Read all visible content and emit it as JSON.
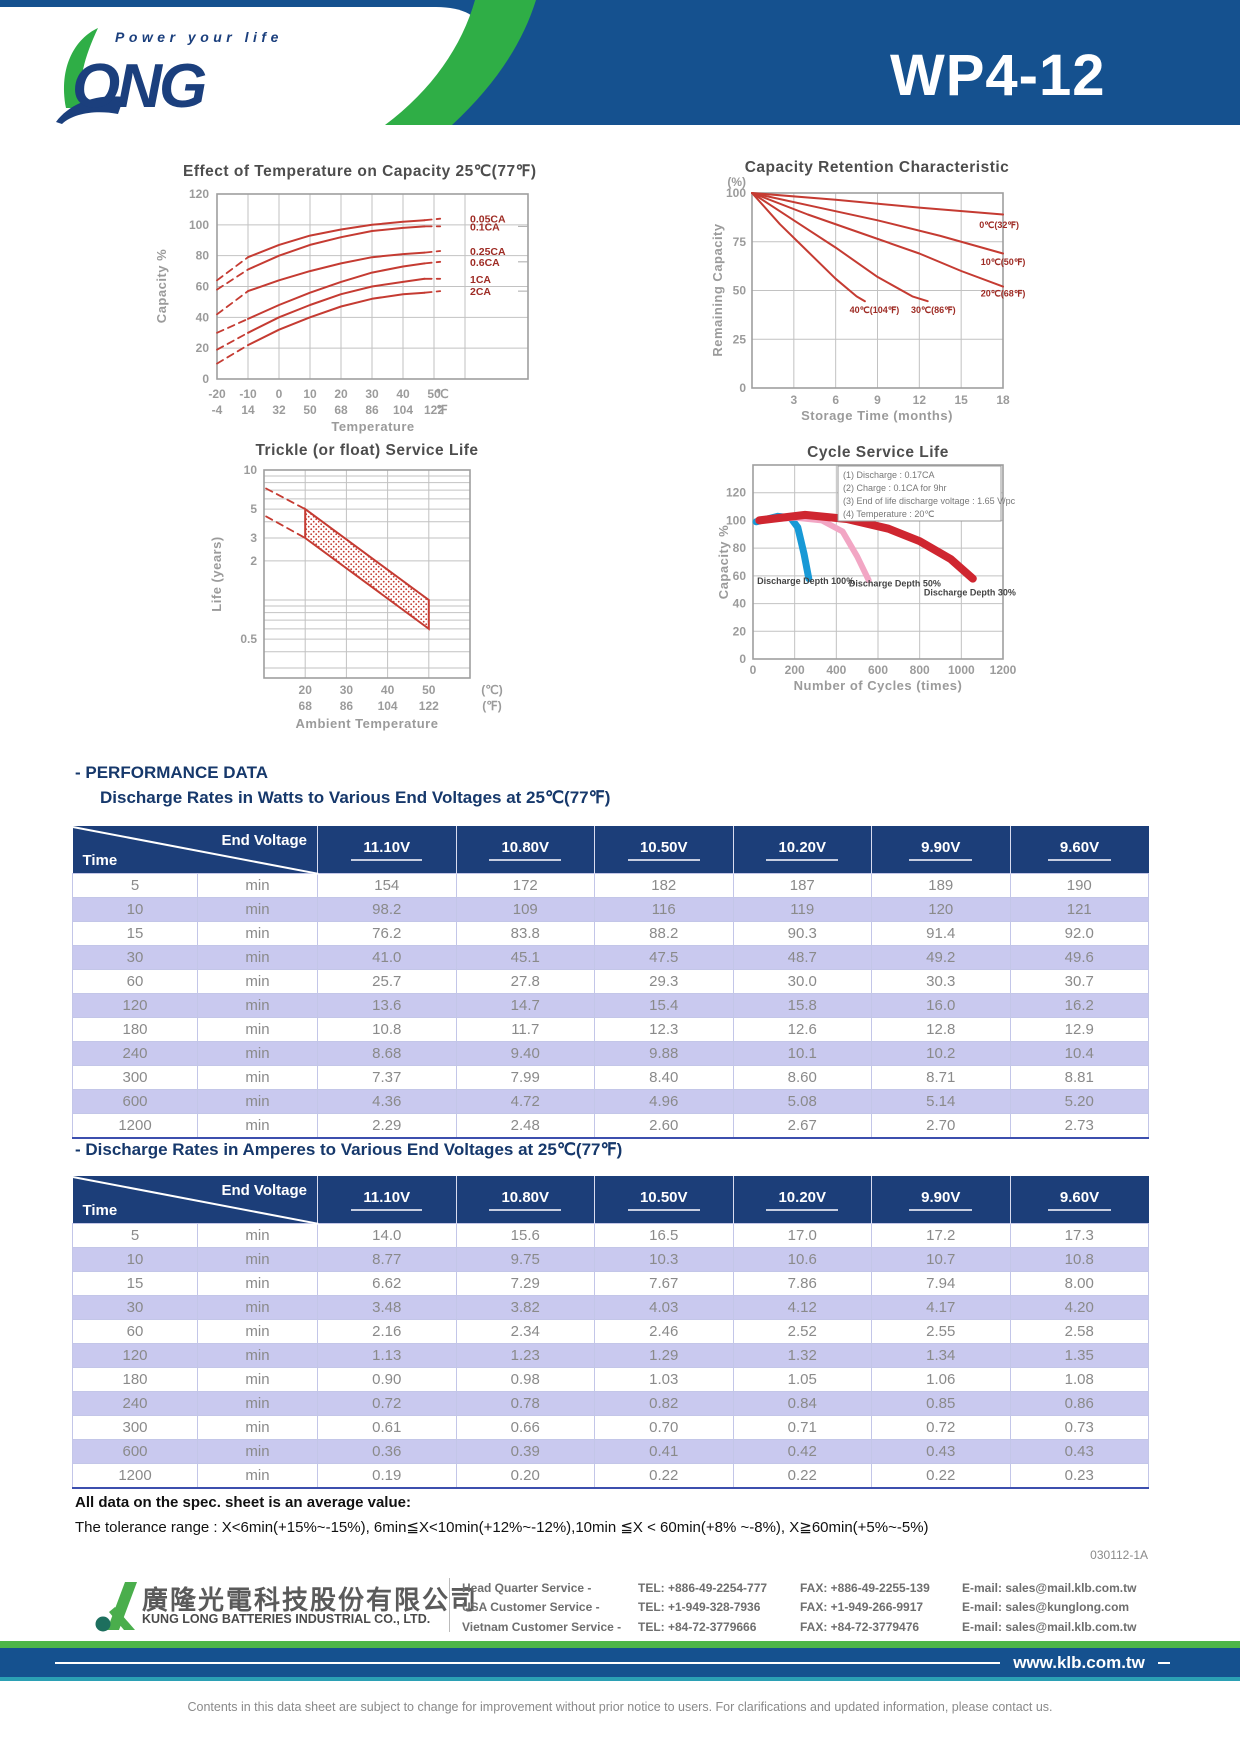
{
  "header": {
    "tagline": "Power your life",
    "brand": "LONG",
    "model": "WP4-12"
  },
  "performance": {
    "section_title": "- PERFORMANCE DATA",
    "watts_title": "Discharge Rates in Watts to Various End Voltages at 25℃(77℉)",
    "amps_title": "- Discharge Rates in Amperes to Various End Voltages at 25℃(77℉)",
    "corner_top": "End Voltage",
    "corner_left": "Time",
    "columns": [
      "11.10V",
      "10.80V",
      "10.50V",
      "10.20V",
      "9.90V",
      "9.60V"
    ],
    "watts_rows": [
      [
        "5",
        "min",
        "154",
        "172",
        "182",
        "187",
        "189",
        "190"
      ],
      [
        "10",
        "min",
        "98.2",
        "109",
        "116",
        "119",
        "120",
        "121"
      ],
      [
        "15",
        "min",
        "76.2",
        "83.8",
        "88.2",
        "90.3",
        "91.4",
        "92.0"
      ],
      [
        "30",
        "min",
        "41.0",
        "45.1",
        "47.5",
        "48.7",
        "49.2",
        "49.6"
      ],
      [
        "60",
        "min",
        "25.7",
        "27.8",
        "29.3",
        "30.0",
        "30.3",
        "30.7"
      ],
      [
        "120",
        "min",
        "13.6",
        "14.7",
        "15.4",
        "15.8",
        "16.0",
        "16.2"
      ],
      [
        "180",
        "min",
        "10.8",
        "11.7",
        "12.3",
        "12.6",
        "12.8",
        "12.9"
      ],
      [
        "240",
        "min",
        "8.68",
        "9.40",
        "9.88",
        "10.1",
        "10.2",
        "10.4"
      ],
      [
        "300",
        "min",
        "7.37",
        "7.99",
        "8.40",
        "8.60",
        "8.71",
        "8.81"
      ],
      [
        "600",
        "min",
        "4.36",
        "4.72",
        "4.96",
        "5.08",
        "5.14",
        "5.20"
      ],
      [
        "1200",
        "min",
        "2.29",
        "2.48",
        "2.60",
        "2.67",
        "2.70",
        "2.73"
      ]
    ],
    "amps_rows": [
      [
        "5",
        "min",
        "14.0",
        "15.6",
        "16.5",
        "17.0",
        "17.2",
        "17.3"
      ],
      [
        "10",
        "min",
        "8.77",
        "9.75",
        "10.3",
        "10.6",
        "10.7",
        "10.8"
      ],
      [
        "15",
        "min",
        "6.62",
        "7.29",
        "7.67",
        "7.86",
        "7.94",
        "8.00"
      ],
      [
        "30",
        "min",
        "3.48",
        "3.82",
        "4.03",
        "4.12",
        "4.17",
        "4.20"
      ],
      [
        "60",
        "min",
        "2.16",
        "2.34",
        "2.46",
        "2.52",
        "2.55",
        "2.58"
      ],
      [
        "120",
        "min",
        "1.13",
        "1.23",
        "1.29",
        "1.32",
        "1.34",
        "1.35"
      ],
      [
        "180",
        "min",
        "0.90",
        "0.98",
        "1.03",
        "1.05",
        "1.06",
        "1.08"
      ],
      [
        "240",
        "min",
        "0.72",
        "0.78",
        "0.82",
        "0.84",
        "0.85",
        "0.86"
      ],
      [
        "300",
        "min",
        "0.61",
        "0.66",
        "0.70",
        "0.71",
        "0.72",
        "0.73"
      ],
      [
        "600",
        "min",
        "0.36",
        "0.39",
        "0.41",
        "0.42",
        "0.43",
        "0.43"
      ],
      [
        "1200",
        "min",
        "0.19",
        "0.20",
        "0.22",
        "0.22",
        "0.22",
        "0.23"
      ]
    ]
  },
  "notes": {
    "average": "All data on the spec. sheet is an average value:",
    "tolerance": "The tolerance range : X<6min(+15%~-15%), 6min≦X<10min(+12%~-12%),10min ≦X < 60min(+8% ~-8%), X≧60min(+5%~-5%)",
    "doc_code": "030112-1A"
  },
  "footer": {
    "company_cn": "廣隆光電科技股份有限公司",
    "company_en": "KUNG LONG BATTERIES INDUSTRIAL CO., LTD.",
    "contacts": [
      {
        "label": "Head Quarter Service -",
        "tel": "TEL: +886-49-2254-777",
        "fax": "FAX: +886-49-2255-139",
        "email": "E-mail: sales@mail.klb.com.tw"
      },
      {
        "label": "USA Customer Service -",
        "tel": "TEL: +1-949-328-7936",
        "fax": "FAX: +1-949-266-9917",
        "email": "E-mail: sales@kunglong.com"
      },
      {
        "label": "Vietnam Customer Service -",
        "tel": "TEL: +84-72-3779666",
        "fax": "FAX: +84-72-3779476",
        "email": "E-mail: sales@mail.klb.com.tw"
      }
    ],
    "website": "www.klb.com.tw",
    "disclaimer": "Contents in this data sheet are subject to change for improvement without prior notice to users. For clarifications and updated information, please contact us."
  },
  "colors": {
    "navy": "#15518f",
    "table_header": "#1c3e79",
    "green": "#4db648",
    "chart_red": "#c53b32",
    "row_lavender": "#c9c9ef",
    "teal": "#2ba0b4"
  },
  "chart_data": [
    {
      "id": "temp-capacity",
      "type": "line",
      "title": "Effect of Temperature on Capacity  25℃(77℉)",
      "ylabel": "Capacity %",
      "xlabel": "Temperature",
      "ylim": [
        0,
        120
      ],
      "yticks": [
        0,
        20,
        40,
        60,
        80,
        100,
        120
      ],
      "xticks_c": [
        -20,
        -10,
        0,
        10,
        20,
        30,
        40,
        50
      ],
      "xticks_f": [
        -4,
        14,
        32,
        50,
        68,
        86,
        104,
        122
      ],
      "x_unit_c": "℃",
      "x_unit_f": "℉",
      "grid": true,
      "series": [
        {
          "name": "0.05CA",
          "points": [
            [
              -20,
              64
            ],
            [
              -10,
              79
            ],
            [
              0,
              87
            ],
            [
              10,
              93
            ],
            [
              20,
              97
            ],
            [
              30,
              100
            ],
            [
              40,
              102
            ],
            [
              47,
              103
            ],
            [
              52,
              104
            ]
          ]
        },
        {
          "name": "0.1CA",
          "points": [
            [
              -20,
              58
            ],
            [
              -10,
              71
            ],
            [
              0,
              80
            ],
            [
              10,
              87
            ],
            [
              20,
              92
            ],
            [
              30,
              96
            ],
            [
              40,
              98
            ],
            [
              47,
              99
            ],
            [
              52,
              99
            ]
          ]
        },
        {
          "name": "0.25CA",
          "points": [
            [
              -20,
              42
            ],
            [
              -10,
              57
            ],
            [
              0,
              64
            ],
            [
              10,
              70
            ],
            [
              20,
              75
            ],
            [
              30,
              79
            ],
            [
              40,
              81
            ],
            [
              47,
              82
            ],
            [
              52,
              83
            ]
          ]
        },
        {
          "name": "0.6CA",
          "points": [
            [
              -20,
              30
            ],
            [
              -10,
              39
            ],
            [
              0,
              48
            ],
            [
              10,
              56
            ],
            [
              20,
              63
            ],
            [
              30,
              69
            ],
            [
              40,
              73
            ],
            [
              47,
              75
            ],
            [
              52,
              76
            ]
          ]
        },
        {
          "name": "1CA",
          "points": [
            [
              -20,
              19
            ],
            [
              -10,
              30
            ],
            [
              0,
              40
            ],
            [
              10,
              48
            ],
            [
              20,
              55
            ],
            [
              30,
              60
            ],
            [
              40,
              63
            ],
            [
              47,
              65
            ],
            [
              52,
              65
            ]
          ]
        },
        {
          "name": "2CA",
          "points": [
            [
              -20,
              10
            ],
            [
              -10,
              22
            ],
            [
              0,
              32
            ],
            [
              10,
              40
            ],
            [
              20,
              47
            ],
            [
              30,
              52
            ],
            [
              40,
              55
            ],
            [
              47,
              56
            ],
            [
              52,
              57
            ]
          ]
        }
      ]
    },
    {
      "id": "capacity-retention",
      "type": "line",
      "title": "Capacity Retention Characteristic",
      "ylabel": "Remaining Capacity",
      "y_unit": "(%)",
      "xlabel": "Storage Time (months)",
      "ylim": [
        0,
        100
      ],
      "yticks": [
        0,
        25,
        50,
        75,
        100
      ],
      "xlim": [
        0,
        18
      ],
      "xticks": [
        3,
        6,
        9,
        12,
        15,
        18
      ],
      "grid": true,
      "series": [
        {
          "name": "0℃(32℉)",
          "points": [
            [
              0,
              100
            ],
            [
              6,
              96.5
            ],
            [
              12,
              92.5
            ],
            [
              18,
              89
            ]
          ],
          "label_at": [
            16.3,
            82
          ]
        },
        {
          "name": "10℃(50℉)",
          "points": [
            [
              0,
              100
            ],
            [
              4.5,
              93
            ],
            [
              9,
              86
            ],
            [
              13.5,
              78
            ],
            [
              18,
              69
            ]
          ],
          "label_at": [
            16.4,
            63
          ]
        },
        {
          "name": "20℃(68℉)",
          "points": [
            [
              0,
              100
            ],
            [
              4,
              89
            ],
            [
              8,
              79
            ],
            [
              12,
              69
            ],
            [
              15,
              60
            ],
            [
              18,
              52
            ]
          ],
          "label_at": [
            16.4,
            47
          ]
        },
        {
          "name": "30℃(86℉)",
          "points": [
            [
              0,
              100
            ],
            [
              3,
              86
            ],
            [
              6,
              72
            ],
            [
              9,
              57
            ],
            [
              11.5,
              47
            ],
            [
              12.6,
              44.5
            ]
          ],
          "label_at": [
            11.4,
            38.5
          ]
        },
        {
          "name": "40℃(104℉)",
          "points": [
            [
              0,
              100
            ],
            [
              2,
              84
            ],
            [
              4,
              70
            ],
            [
              6,
              56
            ],
            [
              7.5,
              47
            ],
            [
              8.1,
              44.5
            ]
          ],
          "label_at": [
            7.0,
            38.5
          ]
        }
      ]
    },
    {
      "id": "trickle-life",
      "type": "band",
      "title": "Trickle (or float) Service Life",
      "ylabel": "Life (years)",
      "xlabel": "Ambient Temperature",
      "ylog_top": 10,
      "yticks_labeled": [
        10,
        5,
        3,
        2,
        0.5
      ],
      "ygrid": [
        9,
        8,
        7,
        6,
        5,
        4,
        3,
        2,
        1,
        0.9,
        0.8,
        0.7,
        0.6,
        0.5,
        0.4,
        0.3
      ],
      "xlim": [
        10,
        60
      ],
      "xticks_c": [
        20,
        30,
        40,
        50
      ],
      "xticks_f": [
        68,
        86,
        104,
        122
      ],
      "x_unit_c": "(℃)",
      "x_unit_f": "(℉)",
      "band": {
        "upper": [
          [
            20,
            5
          ],
          [
            50,
            1.0
          ]
        ],
        "lower": [
          [
            20,
            3.0
          ],
          [
            50,
            0.6
          ]
        ],
        "upper_dash": [
          [
            10.5,
            7.2
          ],
          [
            20,
            5
          ]
        ],
        "lower_dash": [
          [
            10.5,
            4.4
          ],
          [
            20,
            3.0
          ]
        ]
      }
    },
    {
      "id": "cycle-life",
      "type": "cycle",
      "title": "Cycle Service Life",
      "ylabel": "Capacity %",
      "xlabel": "Number of Cycles (times)",
      "ylim": [
        0,
        140
      ],
      "yticks": [
        0,
        20,
        40,
        60,
        80,
        100,
        120
      ],
      "xlim": [
        0,
        1200
      ],
      "xticks": [
        0,
        200,
        400,
        600,
        800,
        1000,
        1200
      ],
      "notes": [
        "(1) Discharge : 0.17CA",
        "(2) Charge : 0.1CA for 9hr",
        "(3) End of life discharge voltage : 1.65 V/pc",
        "(4) Temperature : 20℃"
      ],
      "series": [
        {
          "name": "Discharge Depth 100%",
          "color": "#1899d6",
          "width": 7,
          "points": [
            [
              15,
              99
            ],
            [
              120,
              103
            ],
            [
              180,
              102
            ],
            [
              215,
              95
            ],
            [
              245,
              76
            ],
            [
              268,
              58
            ]
          ],
          "label_at": [
            20,
            54
          ]
        },
        {
          "name": "Discharge Depth 50%",
          "color": "#f2a6c4",
          "width": 6,
          "points": [
            [
              25,
              100
            ],
            [
              200,
              102
            ],
            [
              330,
              100
            ],
            [
              430,
              92
            ],
            [
              500,
              74
            ],
            [
              555,
              57
            ]
          ],
          "label_at": [
            460,
            52.5
          ]
        },
        {
          "name": "Discharge Depth 30%",
          "color": "#cf2630",
          "width": 8,
          "points": [
            [
              30,
              100
            ],
            [
              250,
              104
            ],
            [
              450,
              101
            ],
            [
              650,
              94
            ],
            [
              800,
              85
            ],
            [
              950,
              72
            ],
            [
              1055,
              58
            ]
          ],
          "label_at": [
            820,
            46
          ]
        }
      ]
    }
  ]
}
